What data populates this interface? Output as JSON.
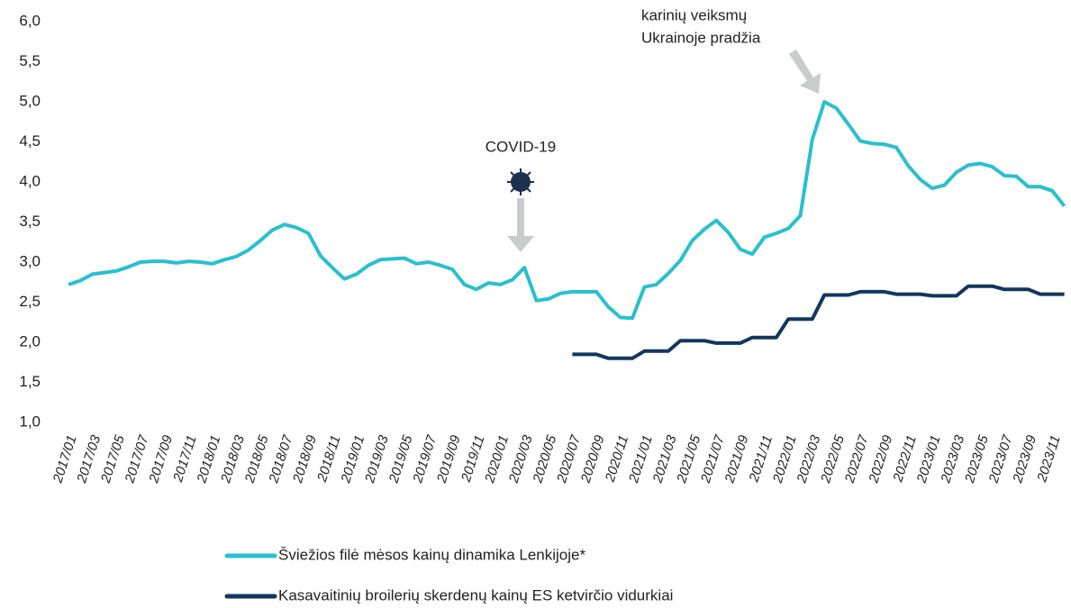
{
  "chart_data": {
    "type": "line",
    "categories": [
      "2017/01",
      null,
      "2017/03",
      null,
      "2017/05",
      null,
      "2017/07",
      null,
      "2017/09",
      null,
      "2017/11",
      null,
      "2018/01",
      null,
      "2018/03",
      null,
      "2018/05",
      null,
      "2018/07",
      null,
      "2018/09",
      null,
      "2018/11",
      null,
      "2019/01",
      null,
      "2019/03",
      null,
      "2019/05",
      null,
      "2019/07",
      null,
      "2019/09",
      null,
      "2019/11",
      null,
      "2020/01",
      null,
      "2020/03",
      null,
      "2020/05",
      null,
      "2020/07",
      null,
      "2020/09",
      null,
      "2020/11",
      null,
      "2021/01",
      null,
      "2021/03",
      null,
      "2021/05",
      null,
      "2021/07",
      null,
      "2021/09",
      null,
      "2021/11",
      null,
      "2022/01",
      null,
      "2022/03",
      null,
      "2022/05",
      null,
      "2022/07",
      null,
      "2022/09",
      null,
      "2022/11",
      null,
      "2023/01",
      null,
      "2023/03",
      null,
      "2023/05",
      null,
      "2023/07",
      null,
      "2023/09",
      null,
      "2023/11",
      null
    ],
    "series": [
      {
        "name": "Šviežios filė mėsos kainų dinamika Lenkijoje*",
        "color": "#2bbfcf",
        "values": [
          2.72,
          2.77,
          2.85,
          2.87,
          2.89,
          2.94,
          3.0,
          3.01,
          3.01,
          2.99,
          3.01,
          3.0,
          2.98,
          3.03,
          3.07,
          3.15,
          3.27,
          3.4,
          3.47,
          3.43,
          3.36,
          3.08,
          2.93,
          2.79,
          2.85,
          2.96,
          3.03,
          3.04,
          3.05,
          2.98,
          3.0,
          2.96,
          2.91,
          2.72,
          2.66,
          2.74,
          2.72,
          2.78,
          2.93,
          2.52,
          2.54,
          2.61,
          2.63,
          2.63,
          2.63,
          2.44,
          2.31,
          2.3,
          2.69,
          2.72,
          2.86,
          3.02,
          3.27,
          3.41,
          3.52,
          3.37,
          3.16,
          3.1,
          3.31,
          3.36,
          3.42,
          3.58,
          4.53,
          5.0,
          4.92,
          4.72,
          4.51,
          4.48,
          4.47,
          4.43,
          4.2,
          4.03,
          3.92,
          3.96,
          4.12,
          4.21,
          4.23,
          4.19,
          4.08,
          4.07,
          3.94,
          3.94,
          3.89,
          3.7
        ]
      },
      {
        "name": "Kasavaitinių broilerių skerdenų kainų ES ketvirčio vidurkiai",
        "color": "#12365f",
        "values": [
          null,
          null,
          null,
          null,
          null,
          null,
          null,
          null,
          null,
          null,
          null,
          null,
          null,
          null,
          null,
          null,
          null,
          null,
          null,
          null,
          null,
          null,
          null,
          null,
          null,
          null,
          null,
          null,
          null,
          null,
          null,
          null,
          null,
          null,
          null,
          null,
          null,
          null,
          null,
          null,
          null,
          null,
          1.85,
          1.85,
          1.85,
          1.8,
          1.8,
          1.8,
          1.89,
          1.89,
          1.89,
          2.02,
          2.02,
          2.02,
          1.99,
          1.99,
          1.99,
          2.06,
          2.06,
          2.06,
          2.29,
          2.29,
          2.29,
          2.59,
          2.59,
          2.59,
          2.63,
          2.63,
          2.63,
          2.6,
          2.6,
          2.6,
          2.58,
          2.58,
          2.58,
          2.7,
          2.7,
          2.7,
          2.66,
          2.66,
          2.66,
          2.6,
          2.6,
          2.6
        ]
      }
    ],
    "ylim": [
      1,
      6
    ],
    "yticks": [
      {
        "value": 1,
        "label": "1,0"
      },
      {
        "value": 1.5,
        "label": "1,5"
      },
      {
        "value": 2,
        "label": "2,0"
      },
      {
        "value": 2.5,
        "label": "2,5"
      },
      {
        "value": 3,
        "label": "3,0"
      },
      {
        "value": 3.5,
        "label": "3,5"
      },
      {
        "value": 4,
        "label": "4,0"
      },
      {
        "value": 4.5,
        "label": "4,5"
      },
      {
        "value": 5,
        "label": "5,0"
      },
      {
        "value": 5.5,
        "label": "5,5"
      },
      {
        "value": 6,
        "label": "6,0"
      }
    ],
    "grid": false,
    "annotations": [
      {
        "text": [
          "COVID-19"
        ]
      },
      {
        "text": [
          "karinių veiksmų",
          "Ukrainoje pradžia"
        ]
      }
    ]
  }
}
